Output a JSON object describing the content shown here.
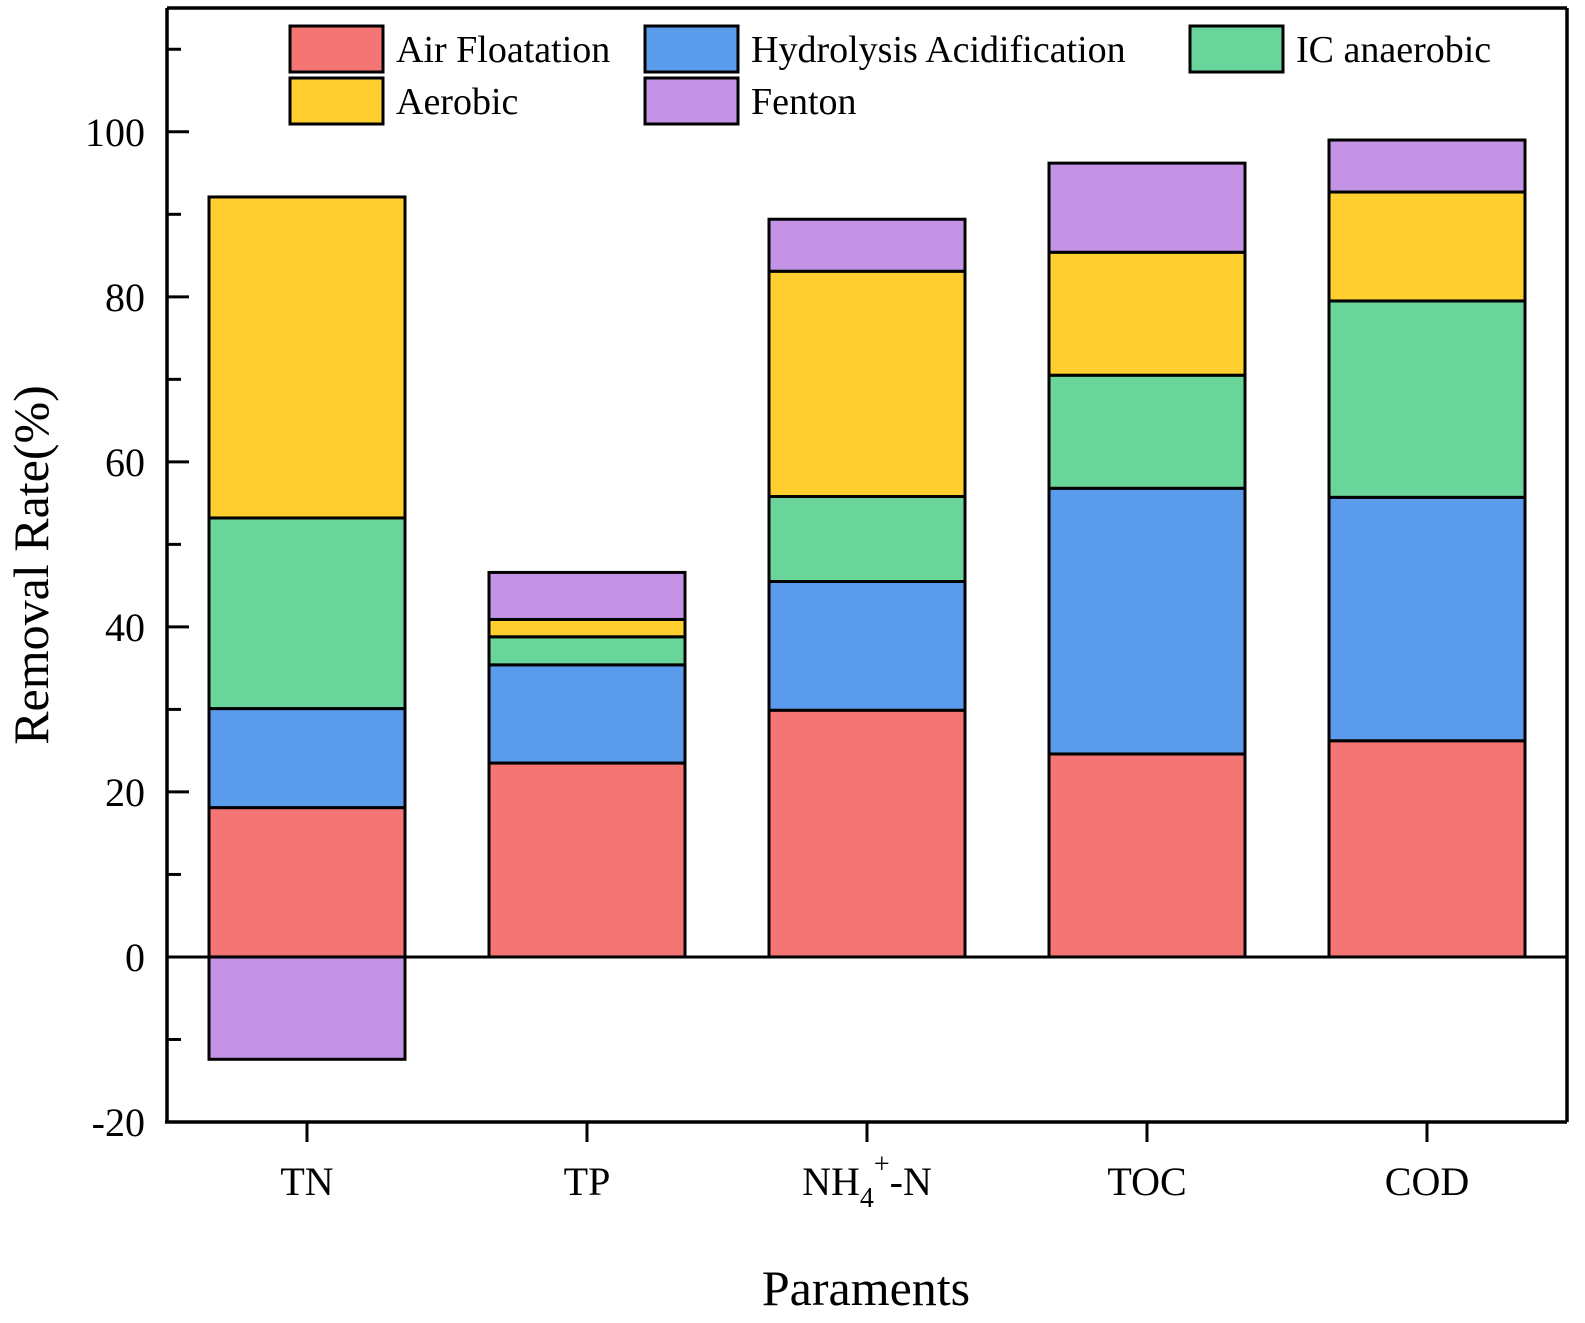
{
  "chart_data": {
    "type": "bar",
    "stacked": true,
    "title": "",
    "xlabel": "Paraments",
    "ylabel": "Removal Rate(%)",
    "ylim": [
      -20,
      115
    ],
    "yticks": [
      -20,
      0,
      20,
      40,
      60,
      80,
      100
    ],
    "grid": false,
    "legend_position": "top",
    "categories": [
      {
        "main": "TN",
        "sub": "",
        "sup": "",
        "suffix": ""
      },
      {
        "main": "TP",
        "sub": "",
        "sup": "",
        "suffix": ""
      },
      {
        "main": "NH",
        "sub": "4",
        "sup": "+",
        "suffix": "-N"
      },
      {
        "main": "TOC",
        "sub": "",
        "sup": "",
        "suffix": ""
      },
      {
        "main": "COD",
        "sub": "",
        "sup": "",
        "suffix": ""
      }
    ],
    "category_names": [
      "TN",
      "TP",
      "NH4+-N",
      "TOC",
      "COD"
    ],
    "series": [
      {
        "name": "Air Floatation",
        "color": "#F57474",
        "values": [
          18.1,
          23.5,
          29.9,
          24.6,
          26.2
        ]
      },
      {
        "name": "Hydrolysis Acidification",
        "color": "#5A9BEC",
        "values": [
          12.0,
          11.9,
          15.6,
          32.2,
          29.5
        ]
      },
      {
        "name": "IC anaerobic",
        "color": "#6AD59B",
        "values": [
          23.1,
          3.4,
          10.3,
          13.7,
          23.8
        ]
      },
      {
        "name": "Aerobic",
        "color": "#FFCE2F",
        "values": [
          38.9,
          2.1,
          27.3,
          14.9,
          13.2
        ]
      },
      {
        "name": "Fenton",
        "color": "#C493E5",
        "values": [
          -12.4,
          5.7,
          6.3,
          10.8,
          6.3
        ]
      }
    ]
  }
}
